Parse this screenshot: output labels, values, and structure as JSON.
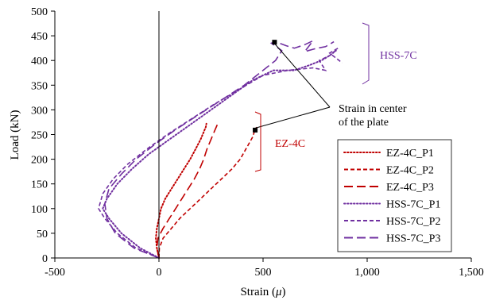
{
  "chart_data": {
    "type": "line",
    "title": "",
    "xlabel_main": "Strain (",
    "xlabel_mu": "μ",
    "xlabel_end": ")",
    "ylabel": "Load (kN)",
    "xlim": [
      -500,
      1500
    ],
    "ylim": [
      0,
      500
    ],
    "xticks": [
      -500,
      0,
      500,
      1000,
      1500
    ],
    "xtick_labels": [
      "-500",
      "0",
      "500",
      "1,000",
      "1,500"
    ],
    "yticks": [
      0,
      50,
      100,
      150,
      200,
      250,
      300,
      350,
      400,
      450,
      500
    ],
    "ytick_labels": [
      "0",
      "50",
      "100",
      "150",
      "200",
      "250",
      "300",
      "350",
      "400",
      "450",
      "500"
    ],
    "grid": false,
    "legend_position": "bottom-right",
    "colors": {
      "ez": "#c00000",
      "hss": "#7030a0"
    },
    "series": [
      {
        "name": "EZ-4C_P1",
        "group": "ez",
        "dash": "dotted",
        "x": [
          0,
          -10,
          -15,
          -10,
          0,
          10,
          30,
          60,
          90,
          120,
          150,
          175,
          200,
          215,
          225,
          228
        ],
        "y": [
          0,
          20,
          40,
          60,
          80,
          100,
          120,
          140,
          160,
          180,
          200,
          220,
          240,
          255,
          265,
          272
        ]
      },
      {
        "name": "EZ-4C_P2",
        "group": "ez",
        "dash": "short",
        "x": [
          0,
          2,
          20,
          60,
          100,
          150,
          200,
          250,
          300,
          350,
          390,
          430,
          450,
          460,
          470
        ],
        "y": [
          0,
          20,
          40,
          60,
          80,
          100,
          120,
          140,
          160,
          180,
          200,
          230,
          245,
          258,
          265
        ]
      },
      {
        "name": "EZ-4C_P3",
        "group": "ez",
        "dash": "long",
        "x": [
          0,
          -10,
          -5,
          20,
          50,
          80,
          110,
          140,
          170,
          195,
          215,
          230,
          250,
          270,
          280
        ],
        "y": [
          0,
          20,
          40,
          60,
          80,
          100,
          120,
          140,
          160,
          180,
          200,
          220,
          240,
          260,
          270
        ]
      },
      {
        "name": "HSS-7C_P1",
        "group": "hss",
        "dash": "dotted",
        "x": [
          0,
          -90,
          -180,
          -240,
          -270,
          -250,
          -200,
          -130,
          -50,
          50,
          150,
          250,
          350,
          450,
          550,
          650,
          720,
          780,
          820,
          850
        ],
        "y": [
          0,
          20,
          50,
          80,
          100,
          120,
          150,
          180,
          210,
          240,
          270,
          300,
          330,
          360,
          380,
          380,
          390,
          400,
          410,
          420
        ]
      },
      {
        "name": "HSS-7C_P2",
        "group": "hss",
        "dash": "short",
        "x": [
          0,
          -110,
          -200,
          -260,
          -290,
          -270,
          -220,
          -150,
          -60,
          40,
          150,
          260,
          380,
          500,
          620,
          740,
          800,
          770,
          820,
          860,
          820,
          850,
          880
        ],
        "y": [
          0,
          20,
          50,
          80,
          100,
          130,
          160,
          190,
          220,
          250,
          280,
          310,
          340,
          370,
          380,
          385,
          380,
          400,
          410,
          425,
          415,
          405,
          395
        ]
      },
      {
        "name": "HSS-7C_P3",
        "group": "hss",
        "dash": "long",
        "x": [
          0,
          -120,
          -210,
          -250,
          -260,
          -240,
          -180,
          -110,
          -20,
          80,
          190,
          300,
          410,
          500,
          560,
          590,
          540,
          560,
          610,
          650,
          700,
          740,
          700,
          760,
          800,
          840
        ],
        "y": [
          0,
          20,
          50,
          80,
          110,
          140,
          170,
          200,
          230,
          260,
          290,
          320,
          350,
          380,
          400,
          420,
          435,
          438,
          430,
          425,
          432,
          440,
          418,
          425,
          428,
          438
        ]
      }
    ],
    "markers": [
      {
        "x": 555,
        "y": 437
      },
      {
        "x": 462,
        "y": 259
      }
    ],
    "annotations": {
      "strain_line1": "Strain in center",
      "strain_line2": "of the plate",
      "hss_label": "HSS-7C",
      "ez_label": "EZ-4C"
    }
  }
}
